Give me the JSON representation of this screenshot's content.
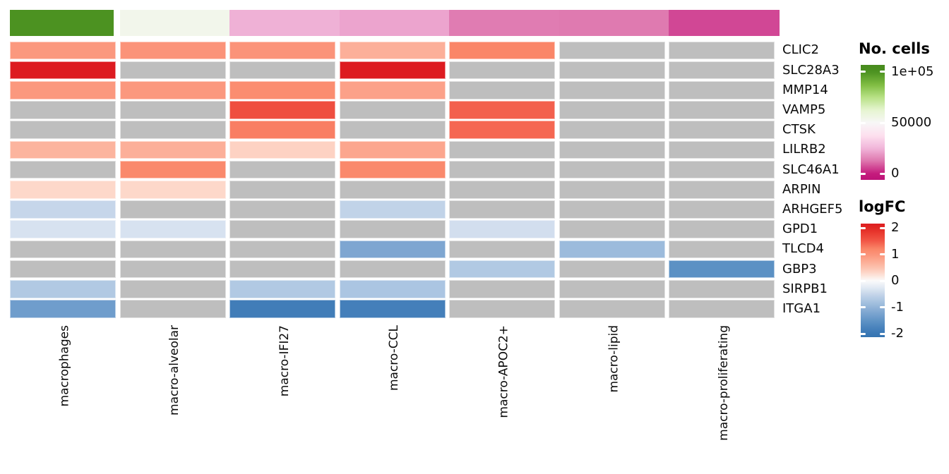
{
  "chart_data": {
    "type": "heatmap",
    "title": "",
    "columns": [
      "macrophages",
      "macro-alveolar",
      "macro-IFI27",
      "macro-CCL",
      "macro-APOC2+",
      "macro-lipid",
      "macro-proliferating"
    ],
    "genes": [
      "CLIC2",
      "SLC28A3",
      "MMP14",
      "VAMP5",
      "CTSK",
      "LILRB2",
      "SLC46A1",
      "ARPIN",
      "ARHGEF5",
      "GPD1",
      "TLCD4",
      "GBP3",
      "SIRPB1",
      "ITGA1"
    ],
    "logfc_values": [
      [
        0.95,
        1.0,
        1.0,
        0.7,
        1.2,
        null,
        null
      ],
      [
        2.2,
        null,
        null,
        2.2,
        null,
        null,
        null
      ],
      [
        0.95,
        0.95,
        1.1,
        0.85,
        null,
        null,
        null
      ],
      [
        null,
        null,
        1.6,
        null,
        1.45,
        null,
        null
      ],
      [
        null,
        null,
        1.25,
        null,
        1.4,
        null,
        null
      ],
      [
        0.65,
        0.7,
        0.35,
        0.8,
        null,
        null,
        null
      ],
      [
        null,
        1.15,
        null,
        1.15,
        null,
        null,
        null
      ],
      [
        0.3,
        0.3,
        null,
        null,
        null,
        null,
        null
      ],
      [
        -0.5,
        null,
        null,
        -0.55,
        null,
        null,
        null
      ],
      [
        -0.35,
        -0.35,
        null,
        null,
        -0.4,
        null,
        null
      ],
      [
        null,
        null,
        null,
        -1.2,
        null,
        -0.9,
        null
      ],
      [
        null,
        null,
        null,
        null,
        -0.7,
        null,
        -1.55
      ],
      [
        -0.7,
        null,
        -0.7,
        -0.75,
        null,
        null,
        null
      ],
      [
        -1.35,
        null,
        -1.9,
        -1.85,
        null,
        null,
        null
      ]
    ],
    "na_color": "#bebebe",
    "column_annotation": {
      "label": "No. cells",
      "approx_counts": [
        100000,
        54000,
        24000,
        21500,
        13500,
        13000,
        6000
      ]
    },
    "legends": {
      "cells": {
        "title": "No. cells",
        "ticks": [
          {
            "label": "1e+05",
            "value": 100000
          },
          {
            "label": "50000",
            "value": 50000
          },
          {
            "label": "0",
            "value": 0
          }
        ]
      },
      "logfc": {
        "title": "logFC",
        "ticks": [
          {
            "label": "2",
            "value": 2
          },
          {
            "label": "1",
            "value": 1
          },
          {
            "label": "0",
            "value": 0
          },
          {
            "label": "-1",
            "value": -1
          },
          {
            "label": "-2",
            "value": -2
          }
        ]
      }
    },
    "color_scales": {
      "logfc_stops": [
        [
          -2.16,
          "#3273b0"
        ],
        [
          -2.0,
          "#3a78b5"
        ],
        [
          -1.8,
          "#4781bb"
        ],
        [
          -1.5,
          "#6094c6"
        ],
        [
          -1.2,
          "#7ea6d1"
        ],
        [
          -1.0,
          "#92b4d8"
        ],
        [
          -0.8,
          "#a6c2e0"
        ],
        [
          -0.5,
          "#c6d6ea"
        ],
        [
          -0.3,
          "#dde6f2"
        ],
        [
          0.0,
          "#fbfbfb"
        ],
        [
          0.3,
          "#fdd8ca"
        ],
        [
          0.5,
          "#fcc1ae"
        ],
        [
          0.8,
          "#fca68e"
        ],
        [
          1.0,
          "#fb9379"
        ],
        [
          1.2,
          "#fa8668"
        ],
        [
          1.5,
          "#f25847"
        ],
        [
          1.8,
          "#e93a30"
        ],
        [
          2.0,
          "#e12823"
        ],
        [
          2.2,
          "#dd1b20"
        ]
      ],
      "cells_stops": [
        [
          -6500,
          "#bd1277"
        ],
        [
          0,
          "#c51b7d"
        ],
        [
          12500,
          "#de77ae"
        ],
        [
          25000,
          "#f1b6da"
        ],
        [
          37500,
          "#fde0ef"
        ],
        [
          50000,
          "#f7f7f7"
        ],
        [
          62500,
          "#e6f5d0"
        ],
        [
          75000,
          "#b8e186"
        ],
        [
          87500,
          "#7fbc41"
        ],
        [
          100000,
          "#4c9221"
        ],
        [
          107000,
          "#478a1d"
        ]
      ]
    }
  }
}
